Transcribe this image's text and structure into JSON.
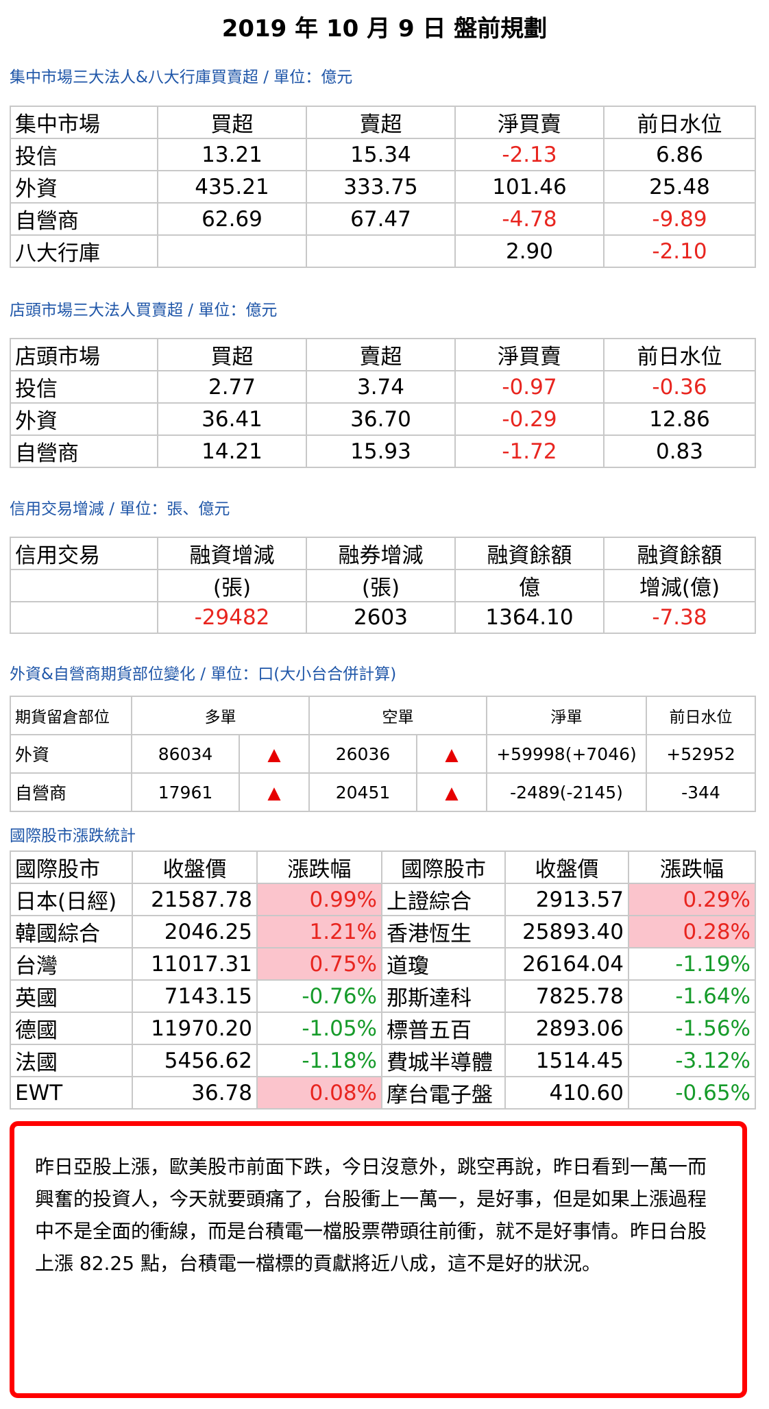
{
  "title": "2019 年 10 月 9 日  盤前規劃",
  "twse": {
    "heading": "集中市場三大法人&八大行庫買賣超 / 單位：億元",
    "headers": [
      "集中市場",
      "買超",
      "賣超",
      "淨買賣",
      "前日水位"
    ],
    "rows": [
      {
        "name": "投信",
        "buy": "13.21",
        "sell": "15.34",
        "net": "-2.13",
        "prev": "6.86"
      },
      {
        "name": "外資",
        "buy": "435.21",
        "sell": "333.75",
        "net": "101.46",
        "prev": "25.48"
      },
      {
        "name": "自營商",
        "buy": "62.69",
        "sell": "67.47",
        "net": "-4.78",
        "prev": "-9.89"
      },
      {
        "name": "八大行庫",
        "buy": "",
        "sell": "",
        "net": "2.90",
        "prev": "-2.10"
      }
    ]
  },
  "otc": {
    "heading": "店頭市場三大法人買賣超 / 單位：億元",
    "headers": [
      "店頭市場",
      "買超",
      "賣超",
      "淨買賣",
      "前日水位"
    ],
    "rows": [
      {
        "name": "投信",
        "buy": "2.77",
        "sell": "3.74",
        "net": "-0.97",
        "prev": "-0.36"
      },
      {
        "name": "外資",
        "buy": "36.41",
        "sell": "36.70",
        "net": "-0.29",
        "prev": "12.86"
      },
      {
        "name": "自營商",
        "buy": "14.21",
        "sell": "15.93",
        "net": "-1.72",
        "prev": "0.83"
      }
    ]
  },
  "margin": {
    "heading": "信用交易增減 / 單位：張、億元",
    "headers": [
      "信用交易",
      "融資增減",
      "融券增減",
      "融資餘額",
      "融資餘額"
    ],
    "subheaders": [
      "",
      "(張)",
      "(張)",
      "億",
      "增減(億)"
    ],
    "values": [
      "",
      "-29482",
      "2603",
      "1364.10",
      "-7.38"
    ]
  },
  "futures": {
    "heading": "外資&自營商期貨部位變化 / 單位：口(大小台合併計算)",
    "headers": [
      "期貨留倉部位",
      "多單",
      "空單",
      "淨單",
      "前日水位"
    ],
    "up_symbol": "▲",
    "rows": [
      {
        "name": "外資",
        "long": "86034",
        "short": "26036",
        "net": "+59998(+7046)",
        "prev": "+52952"
      },
      {
        "name": "自營商",
        "long": "17961",
        "short": "20451",
        "net": "-2489(-2145)",
        "prev": "-344"
      }
    ]
  },
  "intl": {
    "heading": "國際股市漲跌統計",
    "headers": [
      "國際股市",
      "收盤價",
      "漲跌幅",
      "國際股市",
      "收盤價",
      "漲跌幅"
    ],
    "rows": [
      {
        "n1": "日本(日經)",
        "p1": "21587.78",
        "c1": "0.99%",
        "n2": "上證綜合",
        "p2": "2913.57",
        "c2": "0.29%"
      },
      {
        "n1": "韓國綜合",
        "p1": "2046.25",
        "c1": "1.21%",
        "n2": "香港恆生",
        "p2": "25893.40",
        "c2": "0.28%"
      },
      {
        "n1": "台灣",
        "p1": "11017.31",
        "c1": "0.75%",
        "n2": "道瓊",
        "p2": "26164.04",
        "c2": "-1.19%"
      },
      {
        "n1": "英國",
        "p1": "7143.15",
        "c1": "-0.76%",
        "n2": "那斯達科",
        "p2": "7825.78",
        "c2": "-1.64%"
      },
      {
        "n1": "德國",
        "p1": "11970.20",
        "c1": "-1.05%",
        "n2": "標普五百",
        "p2": "2893.06",
        "c2": "-1.56%"
      },
      {
        "n1": "法國",
        "p1": "5456.62",
        "c1": "-1.18%",
        "n2": "費城半導體",
        "p2": "1514.45",
        "c2": "-3.12%"
      },
      {
        "n1": "EWT",
        "p1": "36.78",
        "c1": "0.08%",
        "n2": "摩台電子盤",
        "p2": "410.60",
        "c2": "-0.65%"
      }
    ]
  },
  "commentary": "昨日亞股上漲，歐美股市前面下跌，今日沒意外，跳空再說，昨日看到一萬一而興奮的投資人，今天就要頭痛了，台股衝上一萬一，是好事，但是如果上漲過程中不是全面的衝線，而是台積電一檔股票帶頭往前衝，就不是好事情。昨日台股上漲 82.25 點，台積電一檔標的貢獻將近八成，這不是好的狀況。"
}
